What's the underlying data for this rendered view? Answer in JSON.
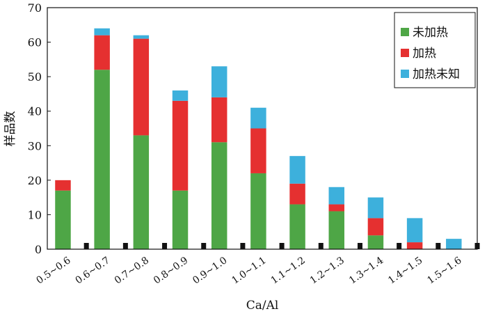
{
  "chart_data": {
    "type": "bar",
    "stacked": true,
    "title": "",
    "xlabel": "Ca/Al",
    "ylabel": "样品数",
    "ylim": [
      0,
      70
    ],
    "yticks": [
      0,
      10,
      20,
      30,
      40,
      50,
      60,
      70
    ],
    "grid": false,
    "legend_position": "top-right",
    "categories": [
      "0.5~0.6",
      "0.6~0.7",
      "0.7~0.8",
      "0.8~0.9",
      "0.9~1.0",
      "1.0~1.1",
      "1.1~1.2",
      "1.2~1.3",
      "1.3~1.4",
      "1.4~1.5",
      "1.5~1.6"
    ],
    "series": [
      {
        "name": "未加热",
        "color": "#4ea646",
        "values": [
          17,
          52,
          33,
          17,
          31,
          22,
          13,
          11,
          4,
          0,
          0
        ]
      },
      {
        "name": "加热",
        "color": "#e53030",
        "values": [
          3,
          10,
          28,
          26,
          13,
          13,
          6,
          2,
          5,
          2,
          0
        ]
      },
      {
        "name": "加热未知",
        "color": "#3db0dc",
        "values": [
          0,
          2,
          1,
          3,
          9,
          6,
          8,
          5,
          6,
          7,
          3
        ]
      }
    ]
  }
}
